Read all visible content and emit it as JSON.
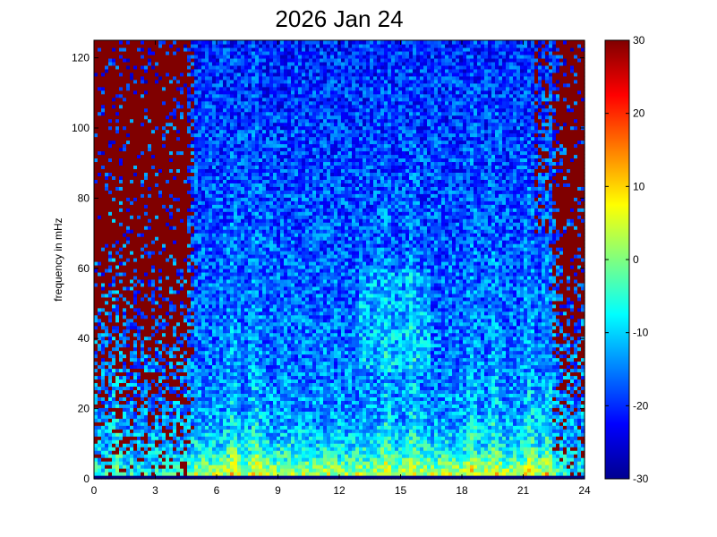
{
  "chart_data": {
    "type": "heatmap",
    "title": "2026 Jan 24",
    "xlabel": "",
    "ylabel": "frequency in mHz",
    "xlim": [
      0,
      24
    ],
    "ylim": [
      0,
      125
    ],
    "x_ticks": [
      "0",
      "3",
      "6",
      "9",
      "12",
      "15",
      "18",
      "21",
      "24"
    ],
    "y_ticks": [
      "0",
      "20",
      "40",
      "60",
      "80",
      "100",
      "120"
    ],
    "colorbar": {
      "range": [
        -30,
        30
      ],
      "ticks": [
        "30",
        "20",
        "10",
        "0",
        "-10",
        "-20",
        "-30"
      ]
    },
    "grid": false
  }
}
